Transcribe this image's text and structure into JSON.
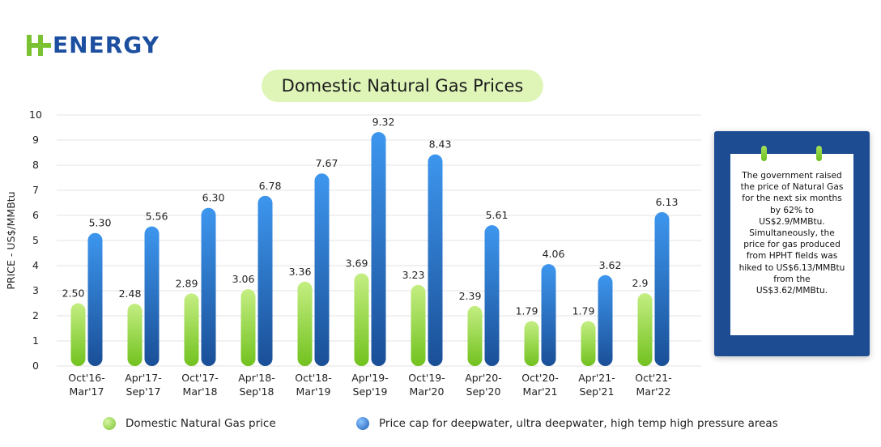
{
  "logo": {
    "text": "ENERGY",
    "mark_color": "#7ac231",
    "text_color": "#1d4fa0"
  },
  "chart_data": {
    "type": "bar",
    "title": "Domestic Natural Gas Prices",
    "ylabel": "PRICE - US$/MMBtu",
    "xlabel": "",
    "ylim": [
      0,
      10
    ],
    "yticks": [
      "0",
      "1",
      "2",
      "3",
      "4",
      "5",
      "6",
      "7",
      "8",
      "9",
      "10"
    ],
    "grid": true,
    "legend_position": "bottom",
    "categories": [
      [
        "Oct'16-",
        "Mar'17"
      ],
      [
        "Apr'17-",
        "Sep'17"
      ],
      [
        "Oct'17-",
        "Mar'18"
      ],
      [
        "Apr'18-",
        "Sep'18"
      ],
      [
        "Oct'18-",
        "Mar'19"
      ],
      [
        "Apr'19-",
        "Sep'19"
      ],
      [
        "Oct'19-",
        "Mar'20"
      ],
      [
        "Apr'20-",
        "Sep'20"
      ],
      [
        "Oct'20-",
        "Mar'21"
      ],
      [
        "Apr'21-",
        "Sep'21"
      ],
      [
        "Oct'21-",
        "Mar'22"
      ]
    ],
    "series": [
      {
        "name": "Domestic Natural Gas price",
        "color": "#8ed22f",
        "values": [
          2.5,
          2.48,
          2.89,
          3.06,
          3.36,
          3.69,
          3.23,
          2.39,
          1.79,
          1.79,
          2.9
        ],
        "labels": [
          "2.50",
          "2.48",
          "2.89",
          "3.06",
          "3.36",
          "3.69",
          "3.23",
          "2.39",
          "1.79",
          "1.79",
          "2.9"
        ]
      },
      {
        "name": "Price cap for deepwater, ultra deepwater, high temp high pressure areas",
        "color": "#2f7fd6",
        "values": [
          5.3,
          5.56,
          6.3,
          6.78,
          7.67,
          9.32,
          8.43,
          5.61,
          4.06,
          3.62,
          6.13
        ],
        "labels": [
          "5.30",
          "5.56",
          "6.30",
          "6.78",
          "7.67",
          "9.32",
          "8.43",
          "5.61",
          "4.06",
          "3.62",
          "6.13"
        ]
      }
    ]
  },
  "note": {
    "text": "The government raised the price of Natural Gas for the next six months by 62% to US$2.9/MMBtu. Simultaneously, the price for gas produced from HPHT fields was hiked to US$6.13/MMBtu from the US$3.62/MMBtu.",
    "panel_color": "#1d4c93"
  },
  "legend": [
    {
      "label": "Domestic Natural Gas price",
      "color": "#8ed22f"
    },
    {
      "label": "Price cap for deepwater, ultra deepwater, high temp high pressure areas",
      "color": "#2f7fd6"
    }
  ]
}
